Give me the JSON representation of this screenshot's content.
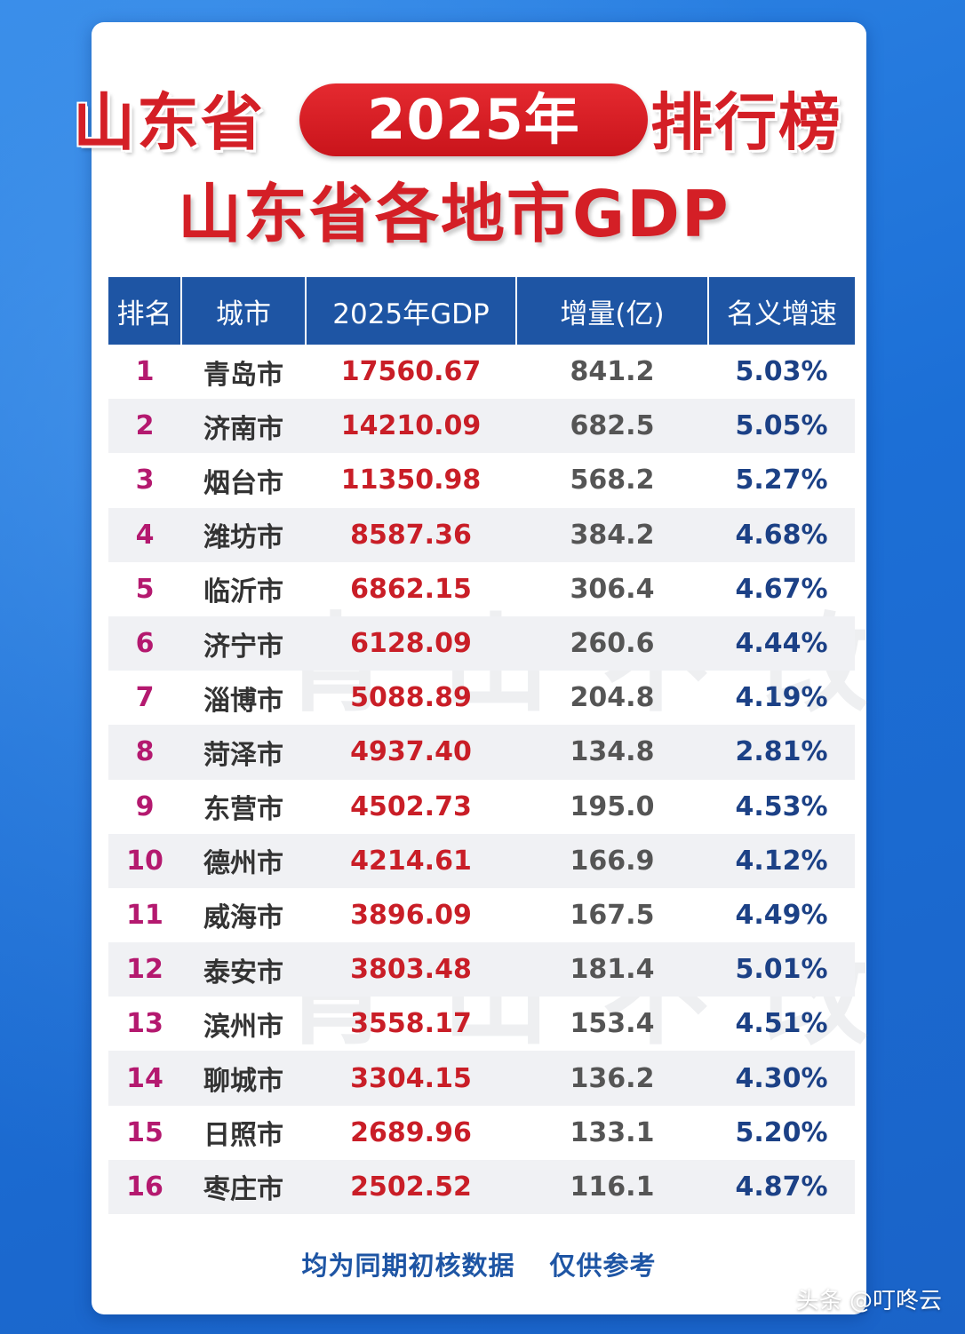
{
  "title": {
    "left": "山东省",
    "year": "2025年",
    "right": "排行榜",
    "subtitle": "山东省各地市GDP"
  },
  "chart_data": {
    "type": "table",
    "columns": [
      "排名",
      "城市",
      "2025年GDP",
      "增量(亿)",
      "名义增速"
    ],
    "rows": [
      [
        "1",
        "青岛市",
        "17560.67",
        "841.2",
        "5.03%"
      ],
      [
        "2",
        "济南市",
        "14210.09",
        "682.5",
        "5.05%"
      ],
      [
        "3",
        "烟台市",
        "11350.98",
        "568.2",
        "5.27%"
      ],
      [
        "4",
        "潍坊市",
        "8587.36",
        "384.2",
        "4.68%"
      ],
      [
        "5",
        "临沂市",
        "6862.15",
        "306.4",
        "4.67%"
      ],
      [
        "6",
        "济宁市",
        "6128.09",
        "260.6",
        "4.44%"
      ],
      [
        "7",
        "淄博市",
        "5088.89",
        "204.8",
        "4.19%"
      ],
      [
        "8",
        "菏泽市",
        "4937.40",
        "134.8",
        "2.81%"
      ],
      [
        "9",
        "东营市",
        "4502.73",
        "195.0",
        "4.53%"
      ],
      [
        "10",
        "德州市",
        "4214.61",
        "166.9",
        "4.12%"
      ],
      [
        "11",
        "威海市",
        "3896.09",
        "167.5",
        "4.49%"
      ],
      [
        "12",
        "泰安市",
        "3803.48",
        "181.4",
        "5.01%"
      ],
      [
        "13",
        "滨州市",
        "3558.17",
        "153.4",
        "4.51%"
      ],
      [
        "14",
        "聊城市",
        "3304.15",
        "136.2",
        "4.30%"
      ],
      [
        "15",
        "日照市",
        "2689.96",
        "133.1",
        "5.20%"
      ],
      [
        "16",
        "枣庄市",
        "2502.52",
        "116.1",
        "4.87%"
      ]
    ]
  },
  "footer_note": "均为同期初核数据 仅供参考",
  "watermark_text": "青山不改",
  "source_watermark": "头条 @叮咚云"
}
